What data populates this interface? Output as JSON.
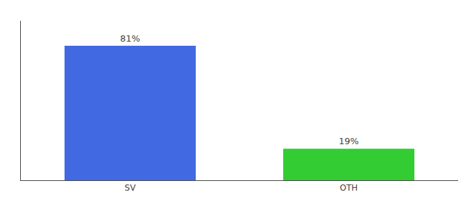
{
  "chart_data": {
    "type": "bar",
    "categories": [
      "SV",
      "OTH"
    ],
    "values": [
      81,
      19
    ],
    "value_labels": [
      "81%",
      "19%"
    ],
    "colors": [
      "#4169e1",
      "#33cc33"
    ],
    "ylim": [
      0,
      96
    ],
    "yticks": [],
    "data_labels": true,
    "tick_labels": "x",
    "grid": false
  }
}
